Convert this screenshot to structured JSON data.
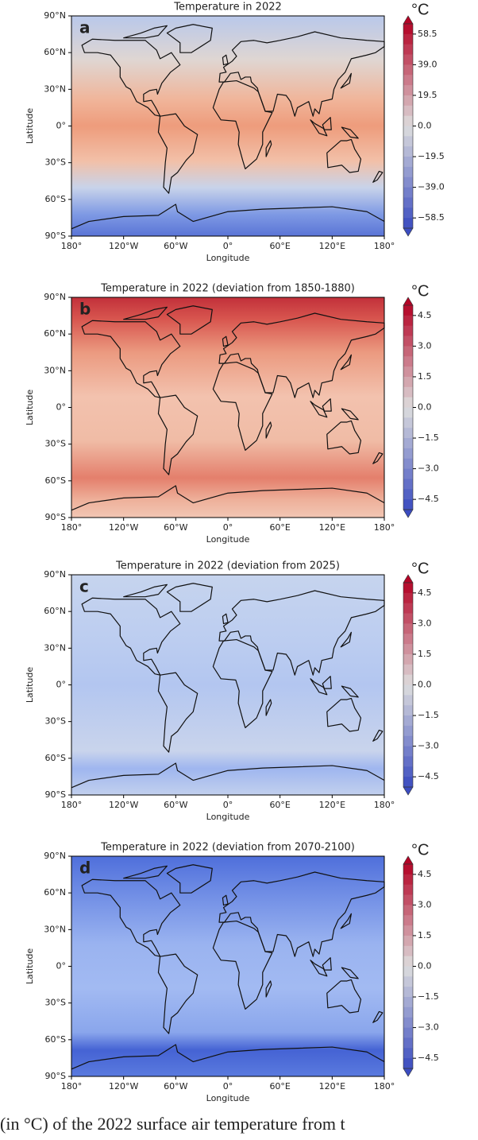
{
  "chart_data": [
    {
      "type": "map",
      "panel": "a",
      "title": "Temperature in 2022",
      "xlabel": "Longitude",
      "ylabel": "Latitude",
      "xlim": [
        -180,
        180
      ],
      "ylim": [
        -90,
        90
      ],
      "xticks": [
        {
          "value": -180,
          "label": "180°"
        },
        {
          "value": -120,
          "label": "120°W"
        },
        {
          "value": -60,
          "label": "60°W"
        },
        {
          "value": 0,
          "label": "0°"
        },
        {
          "value": 60,
          "label": "60°E"
        },
        {
          "value": 120,
          "label": "120°E"
        },
        {
          "value": 180,
          "label": "180°"
        }
      ],
      "yticks": [
        {
          "value": -90,
          "label": "90°S"
        },
        {
          "value": -60,
          "label": "60°S"
        },
        {
          "value": -30,
          "label": "30°S"
        },
        {
          "value": 0,
          "label": "0°"
        },
        {
          "value": 30,
          "label": "30°N"
        },
        {
          "value": 60,
          "label": "60°N"
        },
        {
          "value": 90,
          "label": "90°N"
        }
      ],
      "colorbar": {
        "label": "°C",
        "lim": [
          -65,
          65
        ],
        "ticks": [
          {
            "value": -58.5,
            "label": "−58.5"
          },
          {
            "value": -39,
            "label": "−39.0"
          },
          {
            "value": -19.5,
            "label": "−19.5"
          },
          {
            "value": 0,
            "label": "0.0"
          },
          19.5,
          {
            "value": 39,
            "label": "39.0"
          },
          58.5
        ]
      },
      "colormap": [
        "#3b4cc0",
        "#dddddd",
        "#b40426"
      ]
    },
    {
      "type": "map",
      "panel": "b",
      "title": "Temperature in 2022 (deviation from 1850-1880)",
      "xlabel": "Longitude",
      "ylabel": "Latitude",
      "xlim": [
        -180,
        180
      ],
      "ylim": [
        -90,
        90
      ],
      "xticks": [
        {
          "value": -180,
          "label": "180°"
        },
        {
          "value": -120,
          "label": "120°W"
        },
        {
          "value": -60,
          "label": "60°W"
        },
        {
          "value": 0,
          "label": "0°"
        },
        {
          "value": 60,
          "label": "60°E"
        },
        {
          "value": 120,
          "label": "120°E"
        },
        {
          "value": 180,
          "label": "180°"
        }
      ],
      "yticks": [
        {
          "value": -90,
          "label": "90°S"
        },
        {
          "value": -60,
          "label": "60°S"
        },
        {
          "value": -30,
          "label": "30°S"
        },
        {
          "value": 0,
          "label": "0°"
        },
        {
          "value": 30,
          "label": "30°N"
        },
        {
          "value": 60,
          "label": "60°N"
        },
        {
          "value": 90,
          "label": "90°N"
        }
      ],
      "colorbar": {
        "label": "°C",
        "lim": [
          -5,
          5
        ],
        "ticks": [
          {
            "value": -4.5,
            "label": "−4.5"
          },
          {
            "value": -3,
            "label": "−3.0"
          },
          {
            "value": -1.5,
            "label": "−1.5"
          },
          {
            "value": 0,
            "label": "0.0"
          },
          1.5,
          {
            "value": 3,
            "label": "3.0"
          },
          4.5
        ]
      },
      "colormap": [
        "#3b4cc0",
        "#dddddd",
        "#b40426"
      ]
    },
    {
      "type": "map",
      "panel": "c",
      "title": "Temperature in 2022 (deviation from 2025)",
      "xlabel": "Longitude",
      "ylabel": "Latitude",
      "xlim": [
        -180,
        180
      ],
      "ylim": [
        -90,
        90
      ],
      "xticks": [
        {
          "value": -180,
          "label": "180°"
        },
        {
          "value": -120,
          "label": "120°W"
        },
        {
          "value": -60,
          "label": "60°W"
        },
        {
          "value": 0,
          "label": "0°"
        },
        {
          "value": 60,
          "label": "60°E"
        },
        {
          "value": 120,
          "label": "120°E"
        },
        {
          "value": 180,
          "label": "180°"
        }
      ],
      "yticks": [
        {
          "value": -90,
          "label": "90°S"
        },
        {
          "value": -60,
          "label": "60°S"
        },
        {
          "value": -30,
          "label": "30°S"
        },
        {
          "value": 0,
          "label": "0°"
        },
        {
          "value": 30,
          "label": "30°N"
        },
        {
          "value": 60,
          "label": "60°N"
        },
        {
          "value": 90,
          "label": "90°N"
        }
      ],
      "colorbar": {
        "label": "°C",
        "lim": [
          -5,
          5
        ],
        "ticks": [
          {
            "value": -4.5,
            "label": "−4.5"
          },
          {
            "value": -3,
            "label": "−3.0"
          },
          {
            "value": -1.5,
            "label": "−1.5"
          },
          {
            "value": 0,
            "label": "0.0"
          },
          1.5,
          {
            "value": 3,
            "label": "3.0"
          },
          4.5
        ]
      },
      "colormap": [
        "#3b4cc0",
        "#dddddd",
        "#b40426"
      ]
    },
    {
      "type": "map",
      "panel": "d",
      "title": "Temperature in 2022 (deviation from 2070-2100)",
      "xlabel": "Longitude",
      "ylabel": "Latitude",
      "xlim": [
        -180,
        180
      ],
      "ylim": [
        -90,
        90
      ],
      "xticks": [
        {
          "value": -180,
          "label": "180°"
        },
        {
          "value": -120,
          "label": "120°W"
        },
        {
          "value": -60,
          "label": "60°W"
        },
        {
          "value": 0,
          "label": "0°"
        },
        {
          "value": 60,
          "label": "60°E"
        },
        {
          "value": 120,
          "label": "120°E"
        },
        {
          "value": 180,
          "label": "180°"
        }
      ],
      "yticks": [
        {
          "value": -90,
          "label": "90°S"
        },
        {
          "value": -60,
          "label": "60°S"
        },
        {
          "value": -30,
          "label": "30°S"
        },
        {
          "value": 0,
          "label": "0°"
        },
        {
          "value": 30,
          "label": "30°N"
        },
        {
          "value": 60,
          "label": "60°N"
        },
        {
          "value": 90,
          "label": "90°N"
        }
      ],
      "colorbar": {
        "label": "°C",
        "lim": [
          -5,
          5
        ],
        "ticks": [
          {
            "value": -4.5,
            "label": "−4.5"
          },
          {
            "value": -3,
            "label": "−3.0"
          },
          {
            "value": -1.5,
            "label": "−1.5"
          },
          {
            "value": 0,
            "label": "0.0"
          },
          1.5,
          {
            "value": 3,
            "label": "3.0"
          },
          4.5
        ]
      },
      "colormap": [
        "#3b4cc0",
        "#dddddd",
        "#b40426"
      ]
    }
  ],
  "caption": "(in °C) of the 2022 surface air temperature from t"
}
